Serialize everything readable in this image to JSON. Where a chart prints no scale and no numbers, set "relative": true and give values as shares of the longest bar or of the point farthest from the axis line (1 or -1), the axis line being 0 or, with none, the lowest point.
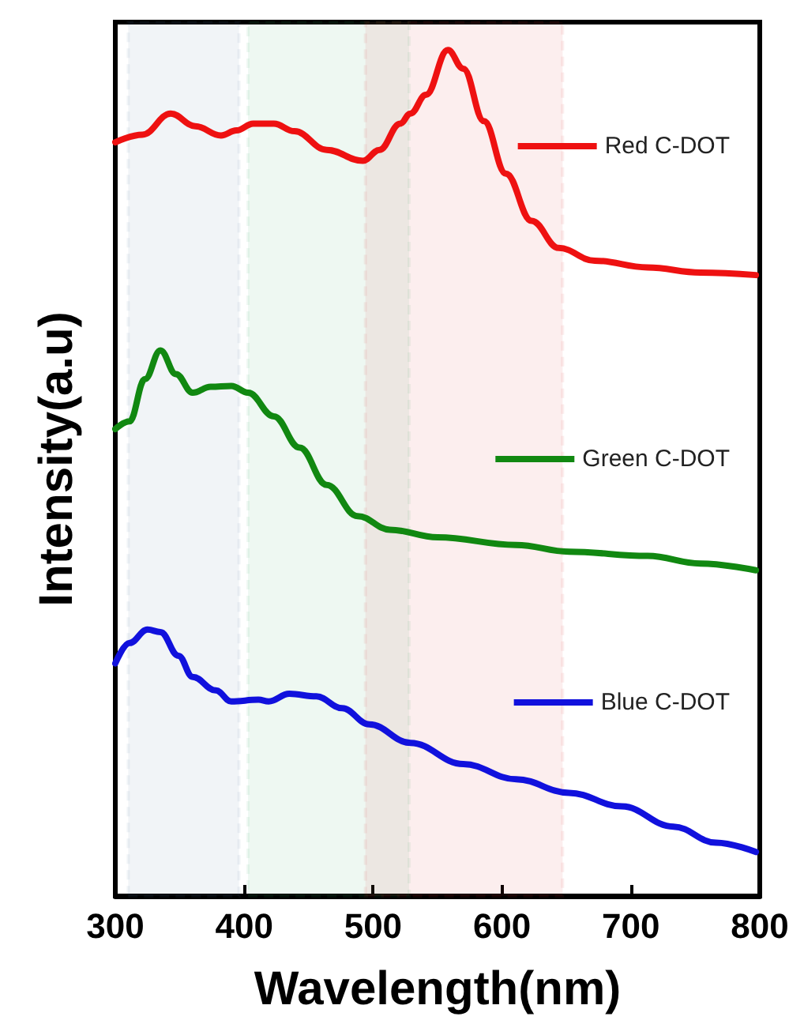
{
  "chart_data": {
    "type": "line",
    "xlabel": "Wavelength(nm)",
    "ylabel": "Intensity(a.u)",
    "relative": true,
    "xlim": [
      300,
      800
    ],
    "xticks": [
      300,
      400,
      500,
      600,
      700,
      800
    ],
    "legend": "right",
    "grid": false,
    "marker": "none",
    "line_style": "solid",
    "series": [
      {
        "name": "Red C-DOT",
        "color": "#ee1111",
        "x": [
          300,
          321,
          343,
          362,
          382,
          394,
          407,
          423,
          439,
          464,
          492,
          505,
          521,
          529,
          541,
          558,
          570,
          586,
          603,
          623,
          644,
          672,
          713,
          754,
          797
        ],
        "values": [
          0.891,
          0.9,
          0.925,
          0.91,
          0.899,
          0.905,
          0.913,
          0.913,
          0.904,
          0.882,
          0.869,
          0.882,
          0.913,
          0.925,
          0.947,
          1.0,
          0.978,
          0.916,
          0.854,
          0.798,
          0.766,
          0.751,
          0.743,
          0.737,
          0.734
        ]
      },
      {
        "name": "Green C-DOT",
        "color": "#118811",
        "x": [
          300,
          311,
          323,
          335,
          347,
          360,
          374,
          390,
          403,
          423,
          443,
          464,
          488,
          513,
          550,
          611,
          652,
          713,
          754,
          797
        ],
        "values": [
          0.552,
          0.561,
          0.611,
          0.645,
          0.617,
          0.595,
          0.602,
          0.603,
          0.595,
          0.567,
          0.53,
          0.486,
          0.449,
          0.433,
          0.424,
          0.415,
          0.407,
          0.402,
          0.393,
          0.385
        ]
      },
      {
        "name": "Blue C-DOT",
        "color": "#1111dd",
        "x": [
          300,
          311,
          325,
          335,
          349,
          360,
          378,
          390,
          411,
          419,
          435,
          456,
          476,
          497,
          529,
          570,
          611,
          652,
          693,
          733,
          766,
          797
        ],
        "values": [
          0.275,
          0.299,
          0.315,
          0.312,
          0.284,
          0.259,
          0.243,
          0.23,
          0.232,
          0.23,
          0.239,
          0.236,
          0.222,
          0.203,
          0.181,
          0.156,
          0.138,
          0.122,
          0.106,
          0.082,
          0.063,
          0.052
        ]
      }
    ],
    "bands": [
      {
        "axis": "x",
        "from": 310,
        "to": 396,
        "color": "#4a6f9a"
      },
      {
        "axis": "x",
        "from": 403,
        "to": 528,
        "color": "#22aa55"
      },
      {
        "axis": "x",
        "from": 494,
        "to": 647,
        "color": "#dd2222"
      }
    ]
  }
}
